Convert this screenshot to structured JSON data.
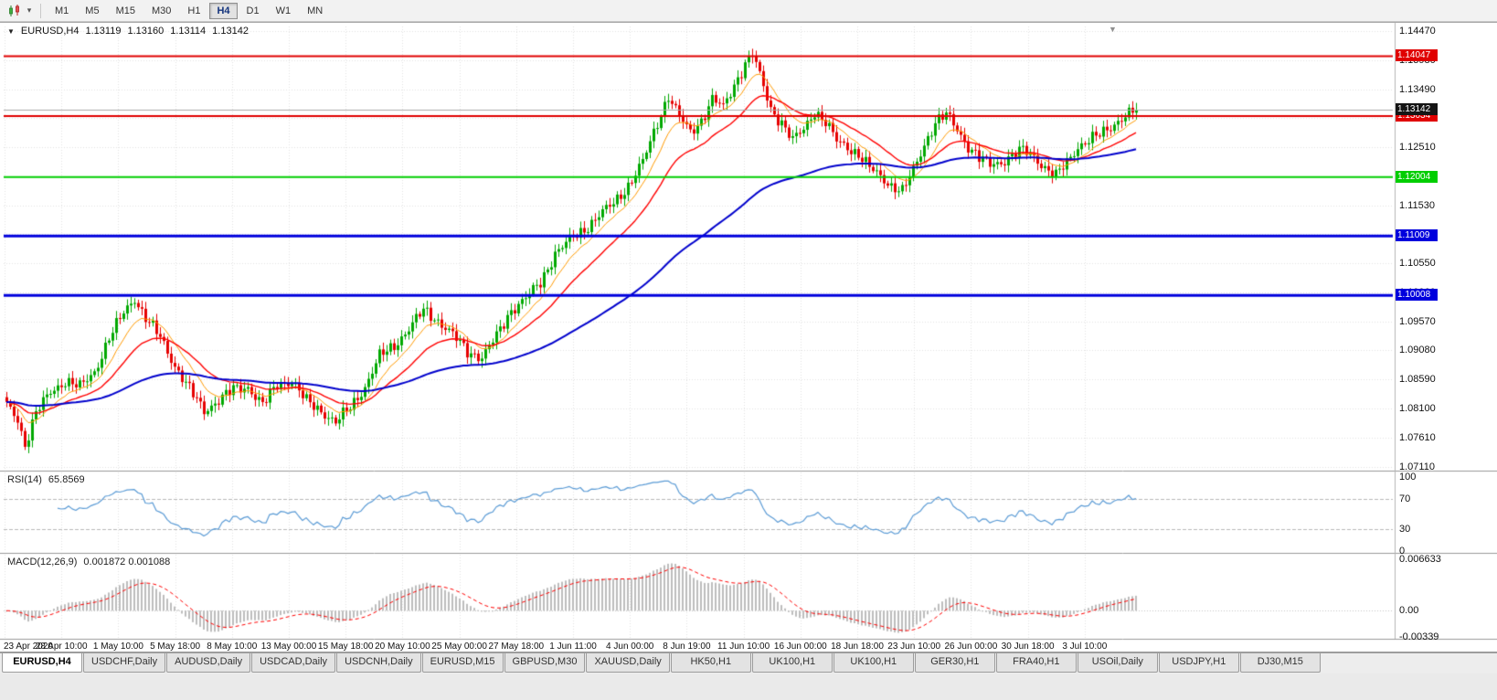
{
  "toolbar": {
    "timeframes": [
      "M1",
      "M5",
      "M15",
      "M30",
      "H1",
      "H4",
      "D1",
      "W1",
      "MN"
    ],
    "active_timeframe": "H4",
    "chart_type_icon": "candlestick-chart",
    "dropdown_icon": "▾"
  },
  "chart": {
    "title": {
      "marker": "▼",
      "symbol": "EURUSD,H4",
      "open": "1.13119",
      "high": "1.13160",
      "low": "1.13114",
      "close": "1.13142"
    },
    "shift_marker": "▼",
    "price_axis_labels": [
      "1.14470",
      "1.13980",
      "1.13490",
      "1.13000",
      "1.12510",
      "1.12020",
      "1.11530",
      "1.11040",
      "1.10550",
      "1.10060",
      "1.09570",
      "1.09080",
      "1.08590",
      "1.08100",
      "1.07610",
      "1.07110"
    ],
    "time_axis_labels": [
      "23 Apr 2020",
      "28 Apr 10:00",
      "1 May 10:00",
      "5 May 18:00",
      "8 May 10:00",
      "13 May 00:00",
      "15 May 18:00",
      "20 May 10:00",
      "25 May 00:00",
      "27 May 18:00",
      "1 Jun 11:00",
      "4 Jun 00:00",
      "8 Jun 19:00",
      "11 Jun 10:00",
      "16 Jun 00:00",
      "18 Jun 18:00",
      "23 Jun 10:00",
      "26 Jun 00:00",
      "30 Jun 18:00",
      "3 Jul 10:00"
    ],
    "hlines": [
      {
        "label": "1.14047",
        "value": 1.14047,
        "color": "#e00000",
        "width": 2
      },
      {
        "label": "1.13034",
        "value": 1.13034,
        "color": "#e00000",
        "width": 2
      },
      {
        "label": "1.12004",
        "value": 1.12004,
        "color": "#00ce00",
        "width": 2
      },
      {
        "label": "1.11009",
        "value": 1.11009,
        "color": "#0000dd",
        "width": 3
      },
      {
        "label": "1.10008",
        "value": 1.10008,
        "color": "#0000dd",
        "width": 3
      }
    ],
    "current_price": {
      "label": "1.13142",
      "value": 1.13142,
      "box_color": "#151515",
      "line_color": "#aaaaaa"
    },
    "colors": {
      "up": "#00a800",
      "down": "#e60000",
      "grid": "#e2e2e2",
      "separator": "#9a9a9a",
      "axis_line": "#b5b5b5"
    },
    "moving_averages": [
      {
        "period": 10,
        "color": "#ff9a00",
        "width": 1
      },
      {
        "period": 24,
        "color": "#ff0000",
        "width": 1.4
      },
      {
        "period": 90,
        "color": "#0000cc",
        "width": 2
      }
    ]
  },
  "chart_data": {
    "type": "candlestick",
    "symbol": "EURUSD",
    "timeframe": "H4",
    "ohlc_current": {
      "open": 1.13119,
      "high": 1.1316,
      "low": 1.13114,
      "close": 1.13142
    },
    "y_range": [
      1.0711,
      1.1447
    ],
    "count": 310,
    "last_close": 1.13142,
    "noise_amp": 0.0013,
    "wick_amp": 0.0012,
    "price_anchors": [
      [
        0,
        1.0815
      ],
      [
        3,
        1.0792
      ],
      [
        5,
        1.0748
      ],
      [
        8,
        1.0802
      ],
      [
        12,
        1.0838
      ],
      [
        16,
        1.0856
      ],
      [
        20,
        1.0846
      ],
      [
        24,
        1.0872
      ],
      [
        28,
        1.0928
      ],
      [
        32,
        1.0972
      ],
      [
        35,
        1.0996
      ],
      [
        38,
        1.0962
      ],
      [
        42,
        1.093
      ],
      [
        46,
        1.0882
      ],
      [
        50,
        1.0842
      ],
      [
        54,
        1.0806
      ],
      [
        58,
        1.0824
      ],
      [
        62,
        1.0842
      ],
      [
        66,
        1.0846
      ],
      [
        70,
        1.0816
      ],
      [
        74,
        1.085
      ],
      [
        78,
        1.0856
      ],
      [
        82,
        1.0822
      ],
      [
        86,
        1.0806
      ],
      [
        90,
        1.0786
      ],
      [
        94,
        1.0812
      ],
      [
        98,
        1.0846
      ],
      [
        102,
        1.0898
      ],
      [
        106,
        1.0916
      ],
      [
        110,
        1.0944
      ],
      [
        114,
        1.0976
      ],
      [
        118,
        1.0958
      ],
      [
        122,
        1.0934
      ],
      [
        126,
        1.0906
      ],
      [
        130,
        1.0896
      ],
      [
        134,
        1.0932
      ],
      [
        138,
        1.0976
      ],
      [
        142,
        1.0996
      ],
      [
        146,
        1.1022
      ],
      [
        150,
        1.1072
      ],
      [
        154,
        1.1094
      ],
      [
        158,
        1.1112
      ],
      [
        162,
        1.1136
      ],
      [
        166,
        1.1156
      ],
      [
        170,
        1.1186
      ],
      [
        174,
        1.1226
      ],
      [
        178,
        1.1292
      ],
      [
        181,
        1.1338
      ],
      [
        184,
        1.1302
      ],
      [
        187,
        1.1276
      ],
      [
        190,
        1.1296
      ],
      [
        193,
        1.1332
      ],
      [
        196,
        1.1318
      ],
      [
        199,
        1.1356
      ],
      [
        202,
        1.1392
      ],
      [
        204,
        1.1408
      ],
      [
        206,
        1.1372
      ],
      [
        209,
        1.1316
      ],
      [
        212,
        1.1292
      ],
      [
        215,
        1.1262
      ],
      [
        218,
        1.1282
      ],
      [
        221,
        1.1312
      ],
      [
        224,
        1.1292
      ],
      [
        227,
        1.1262
      ],
      [
        230,
        1.1252
      ],
      [
        233,
        1.1238
      ],
      [
        236,
        1.1216
      ],
      [
        239,
        1.1202
      ],
      [
        242,
        1.1186
      ],
      [
        245,
        1.1176
      ],
      [
        248,
        1.1212
      ],
      [
        251,
        1.1256
      ],
      [
        254,
        1.1292
      ],
      [
        257,
        1.1306
      ],
      [
        260,
        1.1282
      ],
      [
        263,
        1.1252
      ],
      [
        266,
        1.1232
      ],
      [
        269,
        1.1222
      ],
      [
        272,
        1.1226
      ],
      [
        275,
        1.1236
      ],
      [
        278,
        1.1246
      ],
      [
        281,
        1.1236
      ],
      [
        284,
        1.1216
      ],
      [
        287,
        1.1202
      ],
      [
        290,
        1.1226
      ],
      [
        293,
        1.1252
      ],
      [
        296,
        1.1262
      ],
      [
        299,
        1.1272
      ],
      [
        302,
        1.1286
      ],
      [
        305,
        1.13
      ],
      [
        308,
        1.131
      ],
      [
        309,
        1.13142
      ]
    ]
  },
  "rsi": {
    "name": "RSI(14)",
    "value": "65.8569",
    "period": 14,
    "levels": [
      "100",
      "70",
      "30",
      "0"
    ],
    "line_color": "#5b9bd5"
  },
  "macd": {
    "name": "MACD(12,26,9)",
    "value": "0.001872 0.001088",
    "fast": 12,
    "slow": 26,
    "signal": 9,
    "scale_labels": [
      "0.006633",
      "0.00",
      "-0.00339"
    ],
    "histogram_color": "#bdbdbd",
    "signal_color": "#ff0000"
  },
  "tabs": {
    "items": [
      "EURUSD,H4",
      "USDCHF,Daily",
      "AUDUSD,Daily",
      "USDCAD,Daily",
      "USDCNH,Daily",
      "EURUSD,M15",
      "GBPUSD,M30",
      "XAUUSD,Daily",
      "HK50,H1",
      "UK100,H1",
      "UK100,H1",
      "GER30,H1",
      "FRA40,H1",
      "USOil,Daily",
      "USDJPY,H1",
      "DJ30,M15"
    ],
    "active": "EURUSD,H4"
  }
}
